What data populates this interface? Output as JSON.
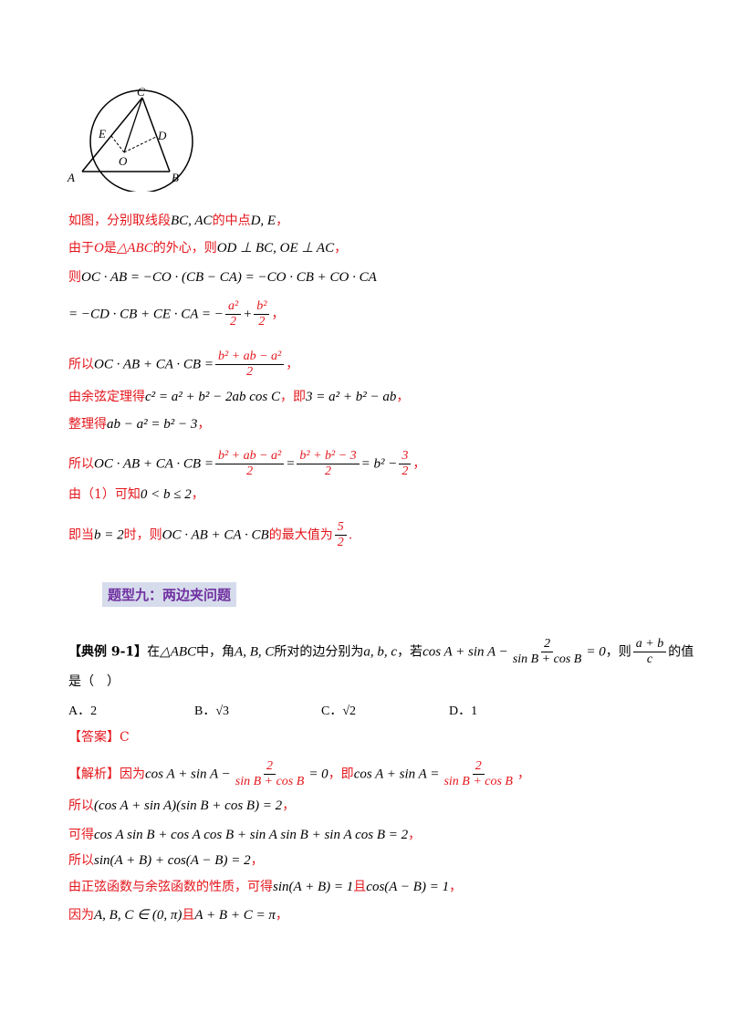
{
  "figure": {
    "labels": {
      "C": "C",
      "E": "E",
      "D": "D",
      "O": "O",
      "A": "A",
      "B": "B"
    }
  },
  "sol": {
    "l1_a": "如图，分别取线段",
    "l1_m": "BC, AC",
    "l1_b": "的中点",
    "l1_m2": "D, E",
    "l1_c": "，",
    "l2_a": "由于",
    "l2_m": "O",
    "l2_b": "是",
    "l2_m2": "△ABC",
    "l2_c": "的外心，则",
    "l2_m3": "OD ⊥ BC, OE ⊥ AC",
    "l2_d": "，",
    "l3_a": "则",
    "l3_m": "OC · AB = −CO · (CB − CA) = −CO · CB + CO · CA",
    "l4_m": "= −CD · CB + CE · CA = −",
    "l4_f1n": "a²",
    "l4_f1d": "2",
    "l4_p": "+",
    "l4_f2n": "b²",
    "l4_f2d": "2",
    "l4_c": "，",
    "l5_a": "所以",
    "l5_m": "OC · AB + CA · CB =",
    "l5_fn": "b² + ab − a²",
    "l5_fd": "2",
    "l5_c": "，",
    "l6_a": "由余弦定理得",
    "l6_m": "c² = a² + b² − 2ab cos C",
    "l6_b": "，即",
    "l6_m2": "3 = a² + b² − ab",
    "l6_c": "，",
    "l7_a": "整理得",
    "l7_m": "ab − a² = b² − 3",
    "l7_c": "，",
    "l8_a": "所以",
    "l8_m": "OC · AB + CA · CB =",
    "l8_f1n": "b² + ab − a²",
    "l8_f1d": "2",
    "l8_e": "=",
    "l8_f2n": "b² + b² − 3",
    "l8_f2d": "2",
    "l8_e2": "= b² −",
    "l8_f3n": "3",
    "l8_f3d": "2",
    "l8_c": "，",
    "l9_a": "由（1）可知",
    "l9_m": "0 < b ≤ 2",
    "l9_c": "，",
    "l10_a": "即当",
    "l10_m": "b = 2",
    "l10_b": "时，则",
    "l10_m2": "OC · AB + CA · CB",
    "l10_c": "的最大值为",
    "l10_fn": "5",
    "l10_fd": "2",
    "l10_d": "."
  },
  "heading": "题型九：两边夹问题",
  "example": {
    "tag": "【典例 9-1】",
    "a": "在",
    "m1": "△ABC",
    "b": "中，角",
    "m2": "A, B, C",
    "c": "所对的边分别为",
    "m3": "a, b, c",
    "d": "，若",
    "m4": "cos A + sin A −",
    "f1n": "2",
    "f1d": "sin B + cos B",
    "m5": "= 0",
    "e": "，则",
    "f2n": "a + b",
    "f2d": "c",
    "f": "的值",
    "line2": "是（　）"
  },
  "choices": [
    "A．2",
    "B．√3",
    "C．√2",
    "D．1"
  ],
  "answer": {
    "tag": "【答案】",
    "value": "C"
  },
  "analysis": {
    "tag": "【解析】",
    "a1": "因为",
    "m1": "cos A + sin A −",
    "f1n": "2",
    "f1d": "sin B + cos B",
    "m2": "= 0",
    "a2": "，即",
    "m3": "cos A + sin A =",
    "f2n": "2",
    "f2d": "sin B + cos B",
    "a3": "，",
    "b1": "所以",
    "bm": "(cos A + sin A)(sin B + cos B) = 2",
    "b2": "，",
    "c1": "可得",
    "cm": "cos A sin B + cos A cos B + sin A sin B + sin A cos B = 2",
    "c2": "，",
    "d1": "所以",
    "dm": "sin(A + B) + cos(A − B) = 2",
    "d2": "，",
    "e1": "由正弦函数与余弦函数的性质，可得",
    "em": "sin(A + B) = 1",
    "e2": "且",
    "em2": "cos(A − B) = 1",
    "e3": "，",
    "f1": "因为",
    "fm": "A, B, C ∈ (0, π)",
    "f2": "且",
    "fm2": "A + B + C = π",
    "f3": "，"
  }
}
